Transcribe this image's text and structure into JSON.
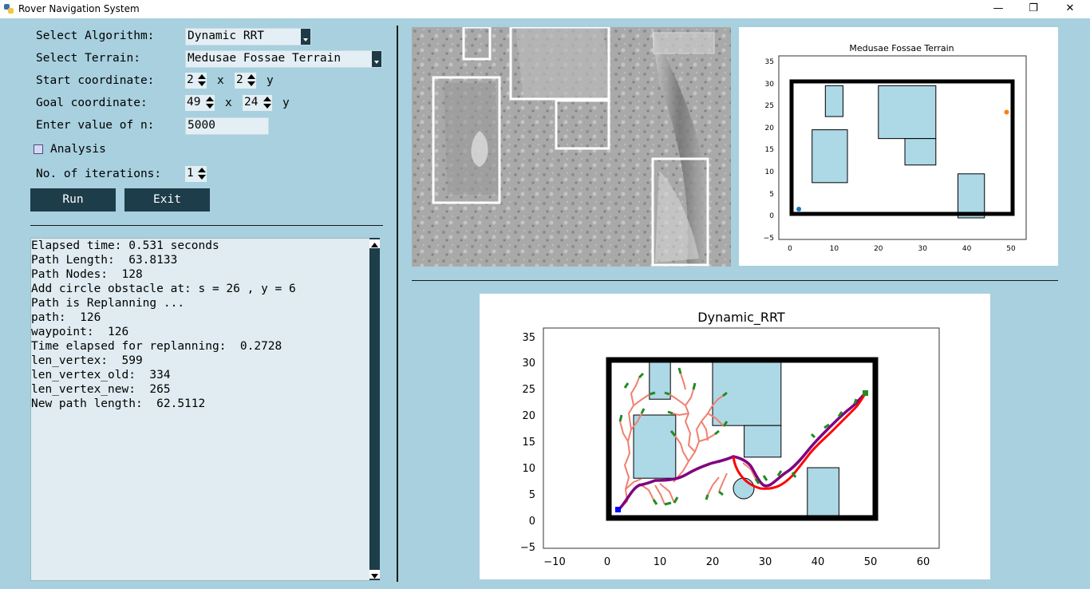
{
  "window": {
    "title": "Rover Navigation System",
    "minimize": "—",
    "maximize": "❐",
    "close": "✕"
  },
  "form": {
    "algorithm_label": "Select Algorithm:",
    "algorithm_value": "Dynamic RRT",
    "terrain_label": "Select Terrain:",
    "terrain_value": "Medusae Fossae Terrain",
    "start_label": "Start coordinate:",
    "start_x": "2",
    "start_y": "2",
    "goal_label": "Goal coordinate:",
    "goal_x": "49",
    "goal_y": "24",
    "x_sep": "x",
    "y_suffix": "y",
    "n_label": "Enter value of n:",
    "n_value": "5000",
    "analysis_label": "Analysis",
    "iterations_label": "No. of iterations:",
    "iterations_value": "1",
    "run_label": "Run",
    "exit_label": "Exit"
  },
  "console_lines": [
    "Elapsed time: 0.531 seconds",
    "Path Length:  63.8133",
    "Path Nodes:  128",
    "Add circle obstacle at: s = 26 , y = 6",
    "Path is Replanning ...",
    "path:  126",
    "waypoint:  126",
    "Time elapsed for replanning:  0.2728",
    "len_vertex:  599",
    "len_vertex_old:  334",
    "len_vertex_new:  265",
    "New path length:  62.5112"
  ],
  "terrain_plot": {
    "title": "Medusae Fossae Terrain",
    "xticks": [
      "0",
      "10",
      "20",
      "30",
      "40",
      "50"
    ],
    "yticks": [
      "35",
      "30",
      "25",
      "20",
      "15",
      "10",
      "5",
      "0",
      "−5"
    ],
    "start": {
      "x": 2,
      "y": 2,
      "color": "#1f77b4"
    },
    "goal": {
      "x": 49,
      "y": 24,
      "color": "#ff7f0e"
    }
  },
  "rrt_plot": {
    "title": "Dynamic_RRT",
    "xticks": [
      "−10",
      "0",
      "10",
      "20",
      "30",
      "40",
      "50",
      "60"
    ],
    "yticks": [
      "35",
      "30",
      "25",
      "20",
      "15",
      "10",
      "5",
      "0",
      "−5"
    ],
    "circle_obstacle": {
      "x": 26,
      "y": 6,
      "r": 2
    },
    "colors": {
      "tree": "#f08070",
      "path": "#800080",
      "replanned": "#ff0000",
      "leaf": "#228b22",
      "obstacle": "#add8e6"
    }
  }
}
